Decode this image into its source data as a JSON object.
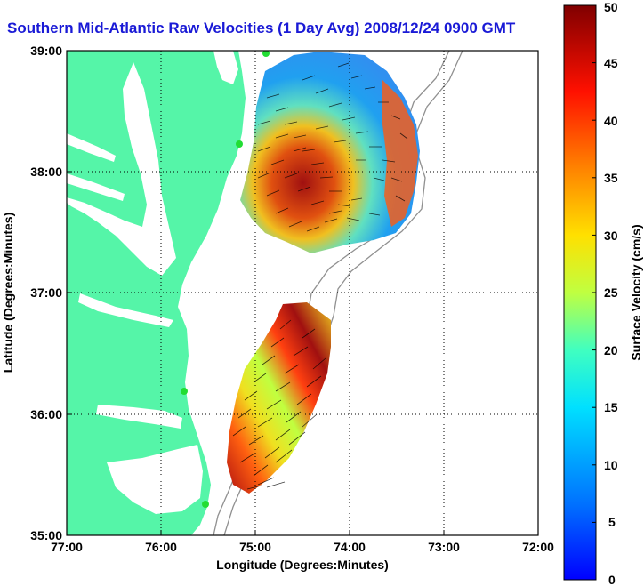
{
  "map": {
    "title": "Southern Mid-Atlantic Raw Velocities (1 Day Avg) 2008/12/24 0900 GMT",
    "xlabel": "Longitude (Degrees:Minutes)",
    "ylabel": "Latitude (Degrees:Minutes)",
    "lon_ticks": [
      "77:00",
      "76:00",
      "75:00",
      "74:00",
      "73:00",
      "72:00"
    ],
    "lat_ticks": [
      "39:00",
      "38:00",
      "37:00",
      "36:00",
      "35:00"
    ],
    "grid": "dotted"
  },
  "colorbar": {
    "label": "Surface Velocity (cm/s)",
    "ticks": [
      "50",
      "45",
      "40",
      "35",
      "30",
      "25",
      "20",
      "15",
      "10",
      "5",
      "0"
    ],
    "range": [
      0,
      50
    ],
    "colormap": "jet"
  },
  "colors": {
    "land": "#55f5a8",
    "title": "#1a1ad6",
    "station": "#22dd33"
  }
}
